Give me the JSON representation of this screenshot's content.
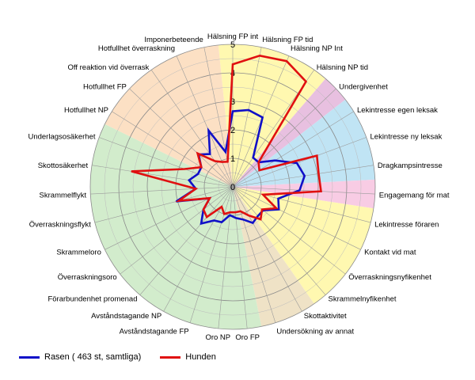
{
  "chart_data": {
    "type": "radar",
    "r_range": [
      0,
      5
    ],
    "ticks": [
      "0",
      "1",
      "2",
      "3",
      "4",
      "5"
    ],
    "categories": [
      "Hälsning FP int",
      "Hälsning FP tid",
      "Hälsning NP Int",
      "Hälsning NP tid",
      "Undergivenhet",
      "Lekintresse egen leksak",
      "Lekintresse ny leksak",
      "Dragkampsintresse",
      "Engagemang för mat",
      "Lekintresse föraren",
      "Kontakt vid mat",
      "Överraskningsnyfikenhet",
      "Skrammelnyfikenhet",
      "Skottaktivitet",
      "Undersökning av annat",
      "Oro FP",
      "Oro NP",
      "Avståndstagande FP",
      "Avståndstagande NP",
      "Förarbundenhet promenad",
      "Överraskningsoro",
      "Skrammeloro",
      "Överraskningsflykt",
      "Skrammelflykt",
      "Skottosäkerhet",
      "Underlagsosäkerhet",
      "Hotfullhet NP",
      "Hotfullhet FP",
      "Off reaktion vid överrask",
      "Hotfullhet överraskning",
      "Imponerbeteende"
    ],
    "series": [
      {
        "name": "Rasen ( 463 st, samtliga)",
        "color": "#1010c8",
        "values": [
          2.65,
          2.75,
          2.65,
          1.25,
          1.25,
          1.75,
          2.4,
          2.55,
          2.35,
          1.65,
          1.8,
          1.35,
          1.35,
          1.45,
          1.2,
          1.1,
          1.0,
          1.3,
          1.35,
          1.7,
          1.3,
          0.9,
          2.05,
          1.3,
          1.55,
          1.3,
          1.3,
          1.65,
          1.4,
          2.15,
          1.25
        ]
      },
      {
        "name": "Hunden",
        "color": "#e01010",
        "values": [
          4.3,
          4.7,
          4.8,
          4.5,
          1.25,
          1.1,
          3.15,
          3.05,
          3.1,
          1.1,
          1.7,
          1.3,
          1.5,
          1.15,
          0.9,
          0.9,
          0.9,
          1.0,
          0.8,
          1.4,
          1.3,
          0.9,
          1.95,
          1.3,
          3.6,
          1.8,
          1.3,
          1.7,
          1.1,
          0.95,
          0.9
        ]
      }
    ],
    "sectors": [
      {
        "from": 0,
        "to": 3,
        "color": "#fff8b0"
      },
      {
        "from": 4,
        "to": 4,
        "color": "#e8c0e0"
      },
      {
        "from": 5,
        "to": 7,
        "color": "#c0e4f4"
      },
      {
        "from": 8,
        "to": 8,
        "color": "#f8cce4"
      },
      {
        "from": 9,
        "to": 12,
        "color": "#fff8b0"
      },
      {
        "from": 13,
        "to": 14,
        "color": "#efe2c6"
      },
      {
        "from": 15,
        "to": 25,
        "color": "#d2eccc"
      },
      {
        "from": 26,
        "to": 30,
        "color": "#fce0c4"
      }
    ],
    "grid": true
  },
  "legend": {
    "series_1": "Rasen ( 463 st, samtliga)",
    "series_2": "Hunden",
    "color_1": "#1010c8",
    "color_2": "#e01010"
  }
}
